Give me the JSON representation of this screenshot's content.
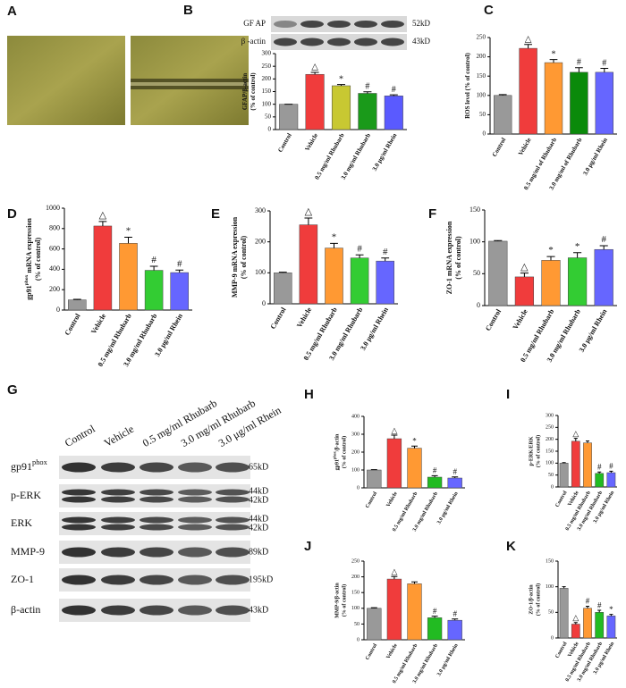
{
  "micrographs": {
    "panel": "A"
  },
  "blot_b": {
    "rows": [
      [
        "GF AP"
      ],
      [
        "β -actin"
      ]
    ],
    "sizes": [
      [
        "52kD"
      ],
      [
        "43kD"
      ]
    ]
  },
  "blot_g": {
    "panel": "G",
    "columns": [
      "Control",
      "Vehicle",
      "0.5 mg/ml Rhubarb",
      "3.0 mg/ml Rhubarb",
      "3.0 μg/ml Rhein"
    ],
    "rows": [
      [
        "gp91",
        {
          "sup": "phox"
        }
      ],
      [
        "p-ERK"
      ],
      [
        "ERK"
      ],
      [
        "MMP-9"
      ],
      [
        "ZO-1"
      ],
      [
        "β-actin"
      ]
    ],
    "sizes": [
      [
        "65kD"
      ],
      [
        "44kD",
        "42kD"
      ],
      [
        "44kD",
        "42kD"
      ],
      [
        "89kD"
      ],
      [
        "195kD"
      ],
      [
        "43kD"
      ]
    ]
  },
  "chart_data": [
    {
      "type": "bar",
      "panel": "B",
      "ylabel": [
        [
          "GFAP/β-actin"
        ],
        [
          "(% of control)"
        ]
      ],
      "categories": [
        "Control",
        "Vehicle",
        "0.5 mg/ml Rhubarb",
        "3.0 mg/ml Rhubarb",
        "3.0 μg/ml Rhein"
      ],
      "values": [
        100,
        218,
        173,
        143,
        133
      ],
      "errors": [
        0,
        8,
        5,
        6,
        4
      ],
      "annotations": [
        null,
        "△",
        "*",
        "#",
        "#"
      ],
      "colors": [
        "#999999",
        "#f03c3c",
        "#c8c832",
        "#1a9a1a",
        "#5a5aff"
      ],
      "ylim": [
        0,
        300
      ],
      "yticks": [
        0,
        50,
        100,
        150,
        200,
        250,
        300
      ]
    },
    {
      "type": "bar",
      "panel": "C",
      "ylabel": [
        [
          "ROS level (% of control)"
        ]
      ],
      "categories": [
        "Control",
        "Vehicle",
        "0.5 mg/ml of Rhubarb",
        "3.0 mg/ml of Rhubarb",
        "3.0 μg/ml Rhein"
      ],
      "values": [
        100,
        222,
        185,
        160,
        160
      ],
      "errors": [
        2,
        10,
        8,
        12,
        10
      ],
      "annotations": [
        null,
        "△",
        "*",
        "#",
        "#"
      ],
      "colors": [
        "#999999",
        "#f03c3c",
        "#ff9933",
        "#0a8a0a",
        "#6666ff"
      ],
      "ylim": [
        0,
        250
      ],
      "yticks": [
        0,
        50,
        100,
        150,
        200,
        250
      ]
    },
    {
      "type": "bar",
      "panel": "D",
      "ylabel": [
        [
          "gp91",
          {
            "sup": "phox"
          },
          " mRNA expression"
        ],
        [
          "(% of control)"
        ]
      ],
      "categories": [
        "Control",
        "Vehicle",
        "0.5 mg/ml Rhubarb",
        "3.0 mg/ml Rhubarb",
        "3.0 μg/ml Rhein"
      ],
      "values": [
        100,
        825,
        655,
        390,
        368
      ],
      "errors": [
        5,
        45,
        60,
        40,
        25
      ],
      "annotations": [
        null,
        "△",
        "*",
        "#",
        "#"
      ],
      "colors": [
        "#999999",
        "#f03c3c",
        "#ff9933",
        "#33cc33",
        "#6666ff"
      ],
      "ylim": [
        0,
        1000
      ],
      "yticks": [
        0,
        200,
        400,
        600,
        800,
        1000
      ]
    },
    {
      "type": "bar",
      "panel": "E",
      "ylabel": [
        [
          "MMP-9 mRNA expression"
        ],
        [
          "(% of control)"
        ]
      ],
      "categories": [
        "Control",
        "Vehicle",
        "0.5 mg/ml Rhubarb",
        "3.0 mg/ml Rhubarb",
        "3.0 μg/ml Rhein"
      ],
      "values": [
        100,
        255,
        180,
        148,
        138
      ],
      "errors": [
        2,
        22,
        15,
        10,
        10
      ],
      "annotations": [
        null,
        "△",
        "*",
        "#",
        "#"
      ],
      "colors": [
        "#999999",
        "#f03c3c",
        "#ff9933",
        "#33cc33",
        "#6666ff"
      ],
      "ylim": [
        0,
        300
      ],
      "yticks": [
        0,
        100,
        200,
        300
      ]
    },
    {
      "type": "bar",
      "panel": "F",
      "ylabel": [
        [
          "ZO-1 mRNA expression"
        ],
        [
          "(% of control)"
        ]
      ],
      "categories": [
        "Control",
        "Vehicle",
        "0.5 mg/ml Rhubarb",
        "3.0 mg/ml Rhubarb",
        "3.0 μg/ml Rhein"
      ],
      "values": [
        101,
        45,
        71,
        75,
        88
      ],
      "errors": [
        1,
        6,
        6,
        8,
        6
      ],
      "annotations": [
        null,
        "△",
        "*",
        "*",
        "#"
      ],
      "colors": [
        "#999999",
        "#f03c3c",
        "#ff9933",
        "#33cc33",
        "#6666ff"
      ],
      "ylim": [
        0,
        150
      ],
      "yticks": [
        0,
        50,
        100,
        150
      ]
    },
    {
      "type": "bar",
      "panel": "H",
      "ylabel": [
        [
          "gp91",
          {
            "sup": "phox"
          },
          "/β-actin"
        ],
        [
          "(% of control)"
        ]
      ],
      "categories": [
        "Control",
        "Vehicle",
        "0.5 mg/ml Rhubarb",
        "3.0 mg/ml Rhubarb",
        "3.0 μg/ml Rhein"
      ],
      "values": [
        100,
        275,
        222,
        60,
        55
      ],
      "errors": [
        2,
        20,
        12,
        8,
        6
      ],
      "annotations": [
        null,
        "△",
        "*",
        "#",
        "#"
      ],
      "colors": [
        "#999999",
        "#f03c3c",
        "#ff9933",
        "#22bb22",
        "#6666ff"
      ],
      "ylim": [
        0,
        400
      ],
      "yticks": [
        0,
        100,
        200,
        300,
        400
      ]
    },
    {
      "type": "bar",
      "panel": "I",
      "ylabel": [
        [
          "p-ERK/ERK"
        ],
        [
          "(% of control)"
        ]
      ],
      "categories": [
        "Control",
        "Vehicle",
        "0.5 mg/ml Rhubarb",
        "3.0 mg/ml Rhubarb",
        "3.0 μg/ml Rhein"
      ],
      "values": [
        100,
        192,
        185,
        57,
        60
      ],
      "errors": [
        2,
        12,
        8,
        6,
        6
      ],
      "annotations": [
        null,
        "△",
        null,
        "#",
        "#"
      ],
      "colors": [
        "#999999",
        "#f03c3c",
        "#ff9933",
        "#22bb22",
        "#6666ff"
      ],
      "ylim": [
        0,
        300
      ],
      "yticks": [
        0,
        50,
        100,
        150,
        200,
        250,
        300
      ]
    },
    {
      "type": "bar",
      "panel": "J",
      "ylabel": [
        [
          "MMP-9/β-actin"
        ],
        [
          "(% of control)"
        ]
      ],
      "categories": [
        "Control",
        "Vehicle",
        "0.5 mg/ml Rhubarb",
        "3.0 mg/ml Rhubarb",
        "3.0 μg/ml Rhein"
      ],
      "values": [
        100,
        193,
        178,
        70,
        62
      ],
      "errors": [
        2,
        8,
        6,
        5,
        4
      ],
      "annotations": [
        null,
        "△",
        null,
        "#",
        "#"
      ],
      "colors": [
        "#999999",
        "#f03c3c",
        "#ff9933",
        "#22bb22",
        "#6666ff"
      ],
      "ylim": [
        0,
        250
      ],
      "yticks": [
        0,
        50,
        100,
        150,
        200,
        250
      ]
    },
    {
      "type": "bar",
      "panel": "K",
      "ylabel": [
        [
          "ZO-1/β-actin"
        ],
        [
          "(% of control)"
        ]
      ],
      "categories": [
        "Control",
        "Vehicle",
        "0.5 mg/ml Rhubarb",
        "3.0 mg/ml Rhubarb",
        "3.0 μg/ml Rhein"
      ],
      "values": [
        97,
        27,
        58,
        50,
        43
      ],
      "errors": [
        3,
        3,
        4,
        4,
        3
      ],
      "annotations": [
        null,
        "△",
        "#",
        "#",
        "*"
      ],
      "colors": [
        "#999999",
        "#f03c3c",
        "#ff9933",
        "#22bb22",
        "#6666ff"
      ],
      "ylim": [
        0,
        150
      ],
      "yticks": [
        0,
        50,
        100,
        150
      ]
    }
  ]
}
